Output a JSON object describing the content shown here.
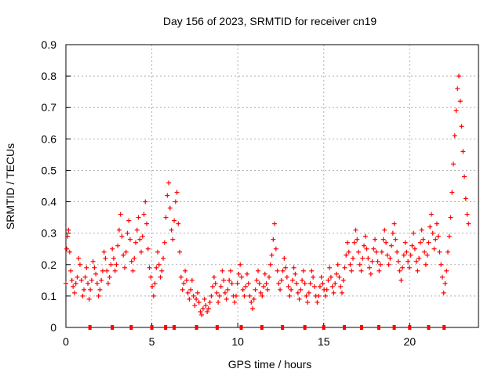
{
  "chart_data": {
    "type": "scatter",
    "title": "Day 156 of 2023, SRMTID for receiver cn19",
    "xlabel": "GPS time / hours",
    "ylabel": "SRMTID / TECUs",
    "xlim": [
      0,
      24
    ],
    "ylim": [
      0,
      0.9
    ],
    "xticks": [
      0,
      5,
      10,
      15,
      20
    ],
    "yticks": [
      0,
      0.1,
      0.2,
      0.3,
      0.4,
      0.5,
      0.6,
      0.7,
      0.8,
      0.9
    ],
    "xtick_labels": [
      "0",
      "5",
      "10",
      "15",
      "20"
    ],
    "ytick_labels": [
      "0",
      "0.1",
      "0.2",
      "0.3",
      "0.4",
      "0.5",
      "0.6",
      "0.7",
      "0.8",
      "0.9"
    ],
    "grid": true,
    "series": [
      {
        "name": "SRMTID",
        "color": "#ff0000",
        "points": [
          [
            0.0,
            0.14
          ],
          [
            0.05,
            0.25
          ],
          [
            0.1,
            0.29
          ],
          [
            0.15,
            0.31
          ],
          [
            0.22,
            0.24
          ],
          [
            0.28,
            0.18
          ],
          [
            0.35,
            0.15
          ],
          [
            0.42,
            0.13
          ],
          [
            0.5,
            0.11
          ],
          [
            0.58,
            0.14
          ],
          [
            0.66,
            0.16
          ],
          [
            0.74,
            0.22
          ],
          [
            0.82,
            0.2
          ],
          [
            0.9,
            0.15
          ],
          [
            0.98,
            0.1
          ],
          [
            1.05,
            0.12
          ],
          [
            1.12,
            0.16
          ],
          [
            1.2,
            0.19
          ],
          [
            1.28,
            0.14
          ],
          [
            1.35,
            0.09
          ],
          [
            1.42,
            0.12
          ],
          [
            1.5,
            0.15
          ],
          [
            1.58,
            0.21
          ],
          [
            1.66,
            0.19
          ],
          [
            1.74,
            0.17
          ],
          [
            1.82,
            0.14
          ],
          [
            1.9,
            0.1
          ],
          [
            1.98,
            0.12
          ],
          [
            2.06,
            0.15
          ],
          [
            2.14,
            0.18
          ],
          [
            2.22,
            0.24
          ],
          [
            2.3,
            0.22
          ],
          [
            2.38,
            0.18
          ],
          [
            2.46,
            0.14
          ],
          [
            2.54,
            0.16
          ],
          [
            2.62,
            0.2
          ],
          [
            2.7,
            0.25
          ],
          [
            2.78,
            0.22
          ],
          [
            2.86,
            0.18
          ],
          [
            2.94,
            0.2
          ],
          [
            3.02,
            0.26
          ],
          [
            3.1,
            0.31
          ],
          [
            3.18,
            0.36
          ],
          [
            3.26,
            0.29
          ],
          [
            3.34,
            0.23
          ],
          [
            3.42,
            0.19
          ],
          [
            3.5,
            0.24
          ],
          [
            3.58,
            0.3
          ],
          [
            3.66,
            0.34
          ],
          [
            3.74,
            0.28
          ],
          [
            3.82,
            0.21
          ],
          [
            3.9,
            0.18
          ],
          [
            3.98,
            0.22
          ],
          [
            4.06,
            0.27
          ],
          [
            4.14,
            0.31
          ],
          [
            4.22,
            0.35
          ],
          [
            4.3,
            0.28
          ],
          [
            4.38,
            0.24
          ],
          [
            4.46,
            0.29
          ],
          [
            4.54,
            0.36
          ],
          [
            4.62,
            0.4
          ],
          [
            4.7,
            0.33
          ],
          [
            4.78,
            0.25
          ],
          [
            4.86,
            0.19
          ],
          [
            4.94,
            0.16
          ],
          [
            5.02,
            0.13
          ],
          [
            5.1,
            0.1
          ],
          [
            5.18,
            0.14
          ],
          [
            5.26,
            0.19
          ],
          [
            5.34,
            0.24
          ],
          [
            5.42,
            0.2
          ],
          [
            5.5,
            0.16
          ],
          [
            5.58,
            0.18
          ],
          [
            5.66,
            0.22
          ],
          [
            5.74,
            0.27
          ],
          [
            5.82,
            0.35
          ],
          [
            5.9,
            0.42
          ],
          [
            5.98,
            0.46
          ],
          [
            6.06,
            0.38
          ],
          [
            6.14,
            0.31
          ],
          [
            6.22,
            0.28
          ],
          [
            6.3,
            0.34
          ],
          [
            6.38,
            0.4
          ],
          [
            6.46,
            0.43
          ],
          [
            6.54,
            0.33
          ],
          [
            6.62,
            0.24
          ],
          [
            6.7,
            0.16
          ],
          [
            6.78,
            0.12
          ],
          [
            6.86,
            0.14
          ],
          [
            6.94,
            0.18
          ],
          [
            7.02,
            0.15
          ],
          [
            7.1,
            0.11
          ],
          [
            7.18,
            0.09
          ],
          [
            7.26,
            0.12
          ],
          [
            7.34,
            0.15
          ],
          [
            7.42,
            0.1
          ],
          [
            7.5,
            0.07
          ],
          [
            7.58,
            0.09
          ],
          [
            7.66,
            0.11
          ],
          [
            7.74,
            0.08
          ],
          [
            7.82,
            0.05
          ],
          [
            7.9,
            0.04
          ],
          [
            7.98,
            0.06
          ],
          [
            8.06,
            0.09
          ],
          [
            8.14,
            0.07
          ],
          [
            8.22,
            0.05
          ],
          [
            8.3,
            0.06
          ],
          [
            8.38,
            0.08
          ],
          [
            8.46,
            0.1
          ],
          [
            8.54,
            0.13
          ],
          [
            8.62,
            0.16
          ],
          [
            8.7,
            0.14
          ],
          [
            8.78,
            0.11
          ],
          [
            8.86,
            0.08
          ],
          [
            8.94,
            0.1
          ],
          [
            9.02,
            0.13
          ],
          [
            9.1,
            0.18
          ],
          [
            9.18,
            0.15
          ],
          [
            9.26,
            0.11
          ],
          [
            9.34,
            0.09
          ],
          [
            9.42,
            0.12
          ],
          [
            9.5,
            0.15
          ],
          [
            9.58,
            0.18
          ],
          [
            9.66,
            0.14
          ],
          [
            9.74,
            0.1
          ],
          [
            9.82,
            0.08
          ],
          [
            9.9,
            0.1
          ],
          [
            9.98,
            0.14
          ],
          [
            10.06,
            0.17
          ],
          [
            10.14,
            0.2
          ],
          [
            10.22,
            0.16
          ],
          [
            10.3,
            0.12
          ],
          [
            10.38,
            0.1
          ],
          [
            10.46,
            0.13
          ],
          [
            10.54,
            0.17
          ],
          [
            10.62,
            0.14
          ],
          [
            10.7,
            0.1
          ],
          [
            10.78,
            0.08
          ],
          [
            10.86,
            0.06
          ],
          [
            10.94,
            0.09
          ],
          [
            11.02,
            0.12
          ],
          [
            11.1,
            0.15
          ],
          [
            11.18,
            0.18
          ],
          [
            11.26,
            0.14
          ],
          [
            11.34,
            0.11
          ],
          [
            11.42,
            0.1
          ],
          [
            11.5,
            0.13
          ],
          [
            11.58,
            0.17
          ],
          [
            11.66,
            0.14
          ],
          [
            11.74,
            0.12
          ],
          [
            11.82,
            0.16
          ],
          [
            11.9,
            0.2
          ],
          [
            11.98,
            0.23
          ],
          [
            12.06,
            0.28
          ],
          [
            12.14,
            0.33
          ],
          [
            12.22,
            0.25
          ],
          [
            12.3,
            0.18
          ],
          [
            12.38,
            0.14
          ],
          [
            12.46,
            0.12
          ],
          [
            12.54,
            0.15
          ],
          [
            12.62,
            0.18
          ],
          [
            12.7,
            0.22
          ],
          [
            12.78,
            0.19
          ],
          [
            12.86,
            0.16
          ],
          [
            12.94,
            0.13
          ],
          [
            13.02,
            0.1
          ],
          [
            13.1,
            0.12
          ],
          [
            13.18,
            0.15
          ],
          [
            13.26,
            0.19
          ],
          [
            13.34,
            0.17
          ],
          [
            13.42,
            0.14
          ],
          [
            13.5,
            0.11
          ],
          [
            13.58,
            0.09
          ],
          [
            13.66,
            0.12
          ],
          [
            13.74,
            0.15
          ],
          [
            13.82,
            0.18
          ],
          [
            13.9,
            0.14
          ],
          [
            13.98,
            0.1
          ],
          [
            14.06,
            0.08
          ],
          [
            14.14,
            0.11
          ],
          [
            14.22,
            0.14
          ],
          [
            14.3,
            0.18
          ],
          [
            14.38,
            0.16
          ],
          [
            14.46,
            0.13
          ],
          [
            14.54,
            0.1
          ],
          [
            14.62,
            0.08
          ],
          [
            14.7,
            0.1
          ],
          [
            14.78,
            0.13
          ],
          [
            14.86,
            0.16
          ],
          [
            14.94,
            0.14
          ],
          [
            15.02,
            0.12
          ],
          [
            15.1,
            0.1
          ],
          [
            15.18,
            0.12
          ],
          [
            15.26,
            0.15
          ],
          [
            15.34,
            0.19
          ],
          [
            15.42,
            0.16
          ],
          [
            15.5,
            0.13
          ],
          [
            15.58,
            0.11
          ],
          [
            15.66,
            0.14
          ],
          [
            15.74,
            0.17
          ],
          [
            15.82,
            0.2
          ],
          [
            15.9,
            0.16
          ],
          [
            15.98,
            0.13
          ],
          [
            16.06,
            0.11
          ],
          [
            16.14,
            0.15
          ],
          [
            16.22,
            0.19
          ],
          [
            16.3,
            0.23
          ],
          [
            16.38,
            0.27
          ],
          [
            16.46,
            0.24
          ],
          [
            16.54,
            0.2
          ],
          [
            16.62,
            0.18
          ],
          [
            16.7,
            0.22
          ],
          [
            16.78,
            0.27
          ],
          [
            16.86,
            0.31
          ],
          [
            16.94,
            0.28
          ],
          [
            17.02,
            0.24
          ],
          [
            17.1,
            0.2
          ],
          [
            17.18,
            0.18
          ],
          [
            17.26,
            0.22
          ],
          [
            17.34,
            0.26
          ],
          [
            17.42,
            0.29
          ],
          [
            17.5,
            0.25
          ],
          [
            17.58,
            0.22
          ],
          [
            17.66,
            0.19
          ],
          [
            17.74,
            0.17
          ],
          [
            17.82,
            0.21
          ],
          [
            17.9,
            0.25
          ],
          [
            17.98,
            0.28
          ],
          [
            18.06,
            0.24
          ],
          [
            18.14,
            0.21
          ],
          [
            18.22,
            0.18
          ],
          [
            18.3,
            0.2
          ],
          [
            18.38,
            0.24
          ],
          [
            18.46,
            0.28
          ],
          [
            18.54,
            0.31
          ],
          [
            18.62,
            0.27
          ],
          [
            18.7,
            0.23
          ],
          [
            18.78,
            0.2
          ],
          [
            18.86,
            0.22
          ],
          [
            18.94,
            0.26
          ],
          [
            19.02,
            0.3
          ],
          [
            19.1,
            0.33
          ],
          [
            19.18,
            0.28
          ],
          [
            19.26,
            0.24
          ],
          [
            19.34,
            0.21
          ],
          [
            19.42,
            0.18
          ],
          [
            19.5,
            0.15
          ],
          [
            19.58,
            0.19
          ],
          [
            19.66,
            0.23
          ],
          [
            19.74,
            0.27
          ],
          [
            19.82,
            0.24
          ],
          [
            19.9,
            0.21
          ],
          [
            19.98,
            0.19
          ],
          [
            20.06,
            0.23
          ],
          [
            20.14,
            0.26
          ],
          [
            20.22,
            0.3
          ],
          [
            20.3,
            0.25
          ],
          [
            20.38,
            0.21
          ],
          [
            20.46,
            0.18
          ],
          [
            20.54,
            0.22
          ],
          [
            20.62,
            0.27
          ],
          [
            20.7,
            0.31
          ],
          [
            20.78,
            0.28
          ],
          [
            20.86,
            0.24
          ],
          [
            20.94,
            0.2
          ],
          [
            21.02,
            0.23
          ],
          [
            21.1,
            0.27
          ],
          [
            21.18,
            0.32
          ],
          [
            21.26,
            0.36
          ],
          [
            21.34,
            0.3
          ],
          [
            21.42,
            0.25
          ],
          [
            21.5,
            0.28
          ],
          [
            21.58,
            0.33
          ],
          [
            21.66,
            0.29
          ],
          [
            21.74,
            0.24
          ],
          [
            21.82,
            0.2
          ],
          [
            21.9,
            0.16
          ],
          [
            21.98,
            0.11
          ],
          [
            22.06,
            0.14
          ],
          [
            22.14,
            0.18
          ],
          [
            22.22,
            0.24
          ],
          [
            22.3,
            0.29
          ],
          [
            22.38,
            0.35
          ],
          [
            22.46,
            0.43
          ],
          [
            22.54,
            0.52
          ],
          [
            22.62,
            0.61
          ],
          [
            22.7,
            0.69
          ],
          [
            22.78,
            0.76
          ],
          [
            22.86,
            0.8
          ],
          [
            22.94,
            0.72
          ],
          [
            23.02,
            0.64
          ],
          [
            23.1,
            0.56
          ],
          [
            23.18,
            0.48
          ],
          [
            23.26,
            0.41
          ],
          [
            23.34,
            0.36
          ],
          [
            23.42,
            0.33
          ]
        ]
      }
    ],
    "baseline_marks_x": [
      1.4,
      2.7,
      3.8,
      5.0,
      5.8,
      6.3,
      7.6,
      8.8,
      10.2,
      11.4,
      12.6,
      13.9,
      15.0,
      16.2,
      17.2,
      18.2,
      19.1,
      20.0,
      21.1,
      22.0
    ]
  }
}
